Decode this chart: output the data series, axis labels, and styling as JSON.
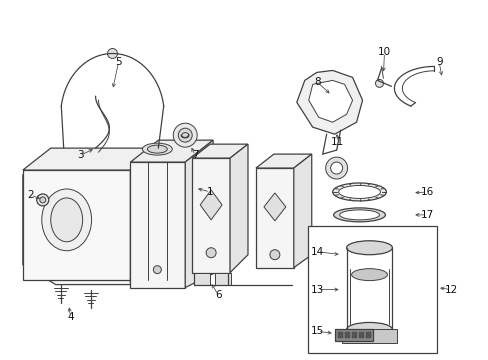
{
  "bg_color": "#ffffff",
  "line_color": "#404040",
  "figsize": [
    4.89,
    3.6
  ],
  "dpi": 100,
  "xlim": [
    0,
    489
  ],
  "ylim": [
    0,
    360
  ]
}
